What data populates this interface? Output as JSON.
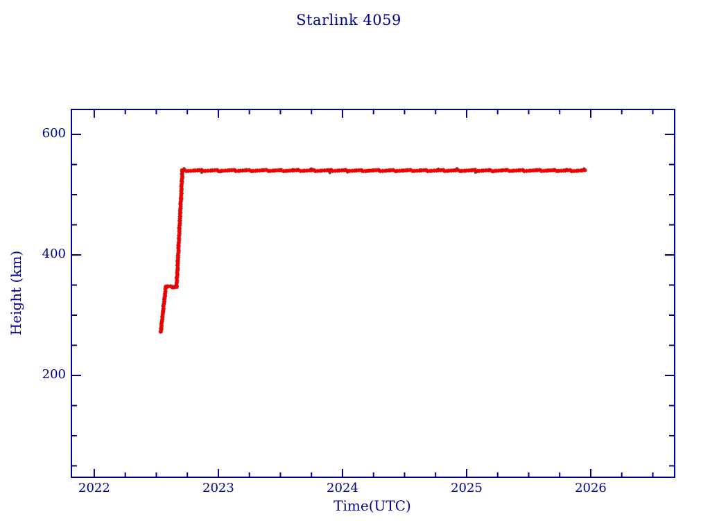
{
  "page": {
    "background": "#ffffff"
  },
  "chart_data": {
    "type": "scatter",
    "title": "Starlink 4059",
    "xlabel": "Time(UTC)",
    "ylabel": "Height (km)",
    "xlim": [
      2021.816,
      2026.676
    ],
    "ylim": [
      31,
      641.4
    ],
    "grid": false,
    "legend": null,
    "axis_color": "#000090",
    "x_ticks": {
      "major": [
        2022,
        2023,
        2024,
        2025,
        2026
      ],
      "labels": [
        "2022",
        "2023",
        "2024",
        "2025",
        "2026"
      ],
      "minor_step": 0.25
    },
    "y_ticks": {
      "major": [
        200,
        400,
        600
      ],
      "labels": [
        "200",
        "400",
        "600"
      ],
      "minor_step": 50
    },
    "series": [
      {
        "name": "outlier-specks",
        "color": "#4a4a4a",
        "marker": "asterisk",
        "size": 2.1,
        "spacing": 26,
        "jitter": 3.2,
        "segments": [
          [
            2022.664,
            352,
            2022.709,
            536
          ],
          [
            2022.72,
            540,
            2025.95,
            540
          ]
        ]
      },
      {
        "name": "predicted-height",
        "color": "#2fdede",
        "marker": "asterisk",
        "size": 3.4,
        "spacing": 5.5,
        "jitter": 1.2,
        "segments": [
          [
            2022.535,
            272,
            2022.577,
            347
          ],
          [
            2022.59,
            347,
            2022.664,
            347
          ],
          [
            2022.664,
            350,
            2022.712,
            540
          ]
        ]
      },
      {
        "name": "observed-height",
        "color": "#ef0000",
        "marker": "asterisk",
        "size": 3.0,
        "spacing": 3.1,
        "jitter": 0.9,
        "segments": [
          [
            2022.535,
            272,
            2022.577,
            347
          ],
          [
            2022.577,
            347,
            2022.664,
            347
          ],
          [
            2022.664,
            350,
            2022.709,
            538
          ],
          [
            2022.709,
            540,
            2025.953,
            540
          ]
        ]
      }
    ]
  }
}
